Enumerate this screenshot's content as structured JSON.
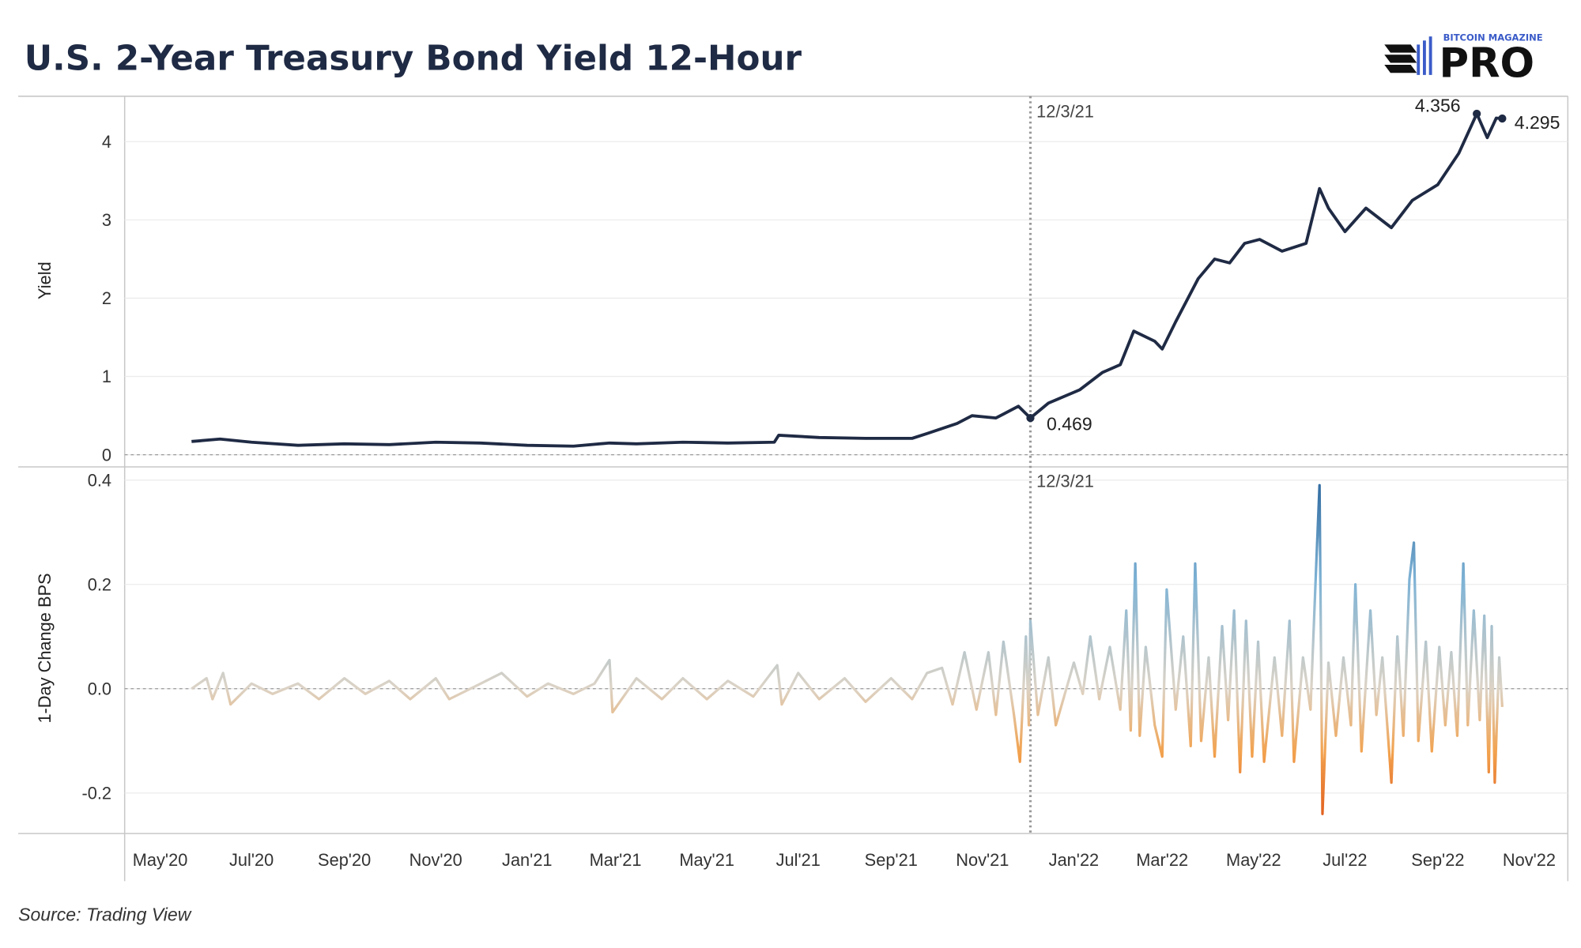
{
  "title": "U.S. 2-Year Treasury Bond Yield 12-Hour",
  "logo": {
    "top_text": "BITCOIN MAGAZINE",
    "main_text": "PRO"
  },
  "source": "Source: Trading View",
  "colors": {
    "yield_line": "#1f2a44",
    "change_positive": "#2f6aa0",
    "change_neutral": "#dcd3c6",
    "change_negative": "#e8661f"
  },
  "chart_data": [
    {
      "type": "line",
      "ylabel": "Yield",
      "ylim": [
        0,
        4.6
      ],
      "yticks": [
        "0",
        "1",
        "2",
        "3",
        "4"
      ],
      "grid": true,
      "marker_line": {
        "date": "2021-12-03",
        "label": "12/3/21"
      },
      "annotations": [
        {
          "date": "2021-12-03",
          "value": 0.469,
          "label": "0.469"
        },
        {
          "date": "2022-09-27",
          "value": 4.356,
          "label": "4.356"
        },
        {
          "date": "2022-10-14",
          "value": 4.295,
          "label": "4.295"
        }
      ],
      "series": {
        "x": [
          "2020-05-22",
          "2020-06-10",
          "2020-07-01",
          "2020-08-01",
          "2020-09-01",
          "2020-10-01",
          "2020-11-01",
          "2020-12-01",
          "2021-01-01",
          "2021-02-01",
          "2021-02-25",
          "2021-03-15",
          "2021-04-15",
          "2021-05-15",
          "2021-06-15",
          "2021-06-18",
          "2021-07-15",
          "2021-08-15",
          "2021-09-15",
          "2021-09-25",
          "2021-10-15",
          "2021-10-25",
          "2021-11-10",
          "2021-11-25",
          "2021-12-03",
          "2021-12-15",
          "2022-01-05",
          "2022-01-20",
          "2022-02-01",
          "2022-02-10",
          "2022-02-24",
          "2022-03-01",
          "2022-03-10",
          "2022-03-25",
          "2022-04-05",
          "2022-04-15",
          "2022-04-25",
          "2022-05-05",
          "2022-05-20",
          "2022-06-05",
          "2022-06-14",
          "2022-06-20",
          "2022-07-01",
          "2022-07-15",
          "2022-08-01",
          "2022-08-15",
          "2022-09-01",
          "2022-09-15",
          "2022-09-27",
          "2022-10-04",
          "2022-10-10",
          "2022-10-14"
        ],
        "values": [
          0.17,
          0.2,
          0.16,
          0.12,
          0.14,
          0.13,
          0.16,
          0.15,
          0.12,
          0.11,
          0.15,
          0.14,
          0.16,
          0.15,
          0.16,
          0.25,
          0.22,
          0.21,
          0.21,
          0.27,
          0.4,
          0.5,
          0.47,
          0.62,
          0.469,
          0.66,
          0.83,
          1.05,
          1.15,
          1.58,
          1.45,
          1.35,
          1.7,
          2.25,
          2.5,
          2.45,
          2.7,
          2.75,
          2.6,
          2.7,
          3.4,
          3.15,
          2.85,
          3.15,
          2.9,
          3.25,
          3.45,
          3.85,
          4.356,
          4.05,
          4.3,
          4.295
        ]
      }
    },
    {
      "type": "line",
      "ylabel": "1-Day Change BPS",
      "ylim": [
        -0.25,
        0.42
      ],
      "yticks": [
        "-0.2",
        "0.0",
        "0.2",
        "0.4"
      ],
      "grid": true,
      "marker_line": {
        "date": "2021-12-03",
        "label": "12/3/21"
      },
      "series": {
        "x": [
          "2020-05-22",
          "2020-06-01",
          "2020-06-05",
          "2020-06-12",
          "2020-06-17",
          "2020-07-01",
          "2020-07-15",
          "2020-08-01",
          "2020-08-15",
          "2020-09-01",
          "2020-09-15",
          "2020-10-01",
          "2020-10-15",
          "2020-11-01",
          "2020-11-10",
          "2020-12-01",
          "2020-12-15",
          "2021-01-01",
          "2021-01-15",
          "2021-02-01",
          "2021-02-15",
          "2021-02-25",
          "2021-02-27",
          "2021-03-15",
          "2021-04-01",
          "2021-04-15",
          "2021-05-01",
          "2021-05-15",
          "2021-06-01",
          "2021-06-17",
          "2021-06-20",
          "2021-07-01",
          "2021-07-15",
          "2021-08-01",
          "2021-08-15",
          "2021-09-01",
          "2021-09-15",
          "2021-09-25",
          "2021-10-05",
          "2021-10-12",
          "2021-10-20",
          "2021-10-28",
          "2021-11-05",
          "2021-11-10",
          "2021-11-15",
          "2021-11-22",
          "2021-11-26",
          "2021-11-30",
          "2021-12-02",
          "2021-12-03",
          "2021-12-08",
          "2021-12-15",
          "2021-12-20",
          "2022-01-01",
          "2022-01-07",
          "2022-01-12",
          "2022-01-18",
          "2022-01-25",
          "2022-02-01",
          "2022-02-05",
          "2022-02-08",
          "2022-02-11",
          "2022-02-14",
          "2022-02-18",
          "2022-02-24",
          "2022-03-01",
          "2022-03-04",
          "2022-03-10",
          "2022-03-15",
          "2022-03-20",
          "2022-03-23",
          "2022-03-27",
          "2022-04-01",
          "2022-04-05",
          "2022-04-10",
          "2022-04-14",
          "2022-04-18",
          "2022-04-22",
          "2022-04-26",
          "2022-04-30",
          "2022-05-04",
          "2022-05-08",
          "2022-05-15",
          "2022-05-20",
          "2022-05-25",
          "2022-05-28",
          "2022-06-03",
          "2022-06-08",
          "2022-06-12",
          "2022-06-14",
          "2022-06-16",
          "2022-06-20",
          "2022-06-25",
          "2022-06-30",
          "2022-07-05",
          "2022-07-08",
          "2022-07-12",
          "2022-07-18",
          "2022-07-22",
          "2022-07-26",
          "2022-08-01",
          "2022-08-05",
          "2022-08-09",
          "2022-08-13",
          "2022-08-16",
          "2022-08-19",
          "2022-08-24",
          "2022-08-28",
          "2022-09-02",
          "2022-09-06",
          "2022-09-10",
          "2022-09-14",
          "2022-09-18",
          "2022-09-21",
          "2022-09-25",
          "2022-09-29",
          "2022-10-02",
          "2022-10-05",
          "2022-10-07",
          "2022-10-09",
          "2022-10-12",
          "2022-10-14"
        ],
        "values": [
          0.0,
          0.02,
          -0.02,
          0.03,
          -0.03,
          0.01,
          -0.01,
          0.01,
          -0.02,
          0.02,
          -0.01,
          0.015,
          -0.02,
          0.02,
          -0.02,
          0.01,
          0.03,
          -0.015,
          0.01,
          -0.01,
          0.01,
          0.055,
          -0.045,
          0.02,
          -0.02,
          0.02,
          -0.02,
          0.015,
          -0.015,
          0.045,
          -0.03,
          0.03,
          -0.02,
          0.02,
          -0.025,
          0.02,
          -0.02,
          0.03,
          0.04,
          -0.03,
          0.07,
          -0.04,
          0.07,
          -0.05,
          0.09,
          -0.05,
          -0.14,
          0.1,
          -0.07,
          0.13,
          -0.05,
          0.06,
          -0.07,
          0.05,
          -0.01,
          0.1,
          -0.02,
          0.08,
          -0.04,
          0.15,
          -0.08,
          0.24,
          -0.09,
          0.08,
          -0.07,
          -0.13,
          0.19,
          -0.04,
          0.1,
          -0.11,
          0.24,
          -0.1,
          0.06,
          -0.13,
          0.12,
          -0.06,
          0.15,
          -0.16,
          0.13,
          -0.13,
          0.09,
          -0.14,
          0.06,
          -0.09,
          0.13,
          -0.14,
          0.06,
          -0.04,
          0.25,
          0.39,
          -0.24,
          0.05,
          -0.09,
          0.06,
          -0.07,
          0.2,
          -0.12,
          0.15,
          -0.05,
          0.06,
          -0.18,
          0.1,
          -0.09,
          0.21,
          0.28,
          -0.1,
          0.09,
          -0.12,
          0.08,
          -0.07,
          0.07,
          -0.09,
          0.24,
          -0.07,
          0.15,
          -0.06,
          0.14,
          -0.16,
          0.12,
          -0.18,
          0.06,
          -0.035
        ]
      }
    }
  ],
  "x_axis": {
    "tick_labels": [
      "May'20",
      "Jul'20",
      "Sep'20",
      "Nov'20",
      "Jan'21",
      "Mar'21",
      "May'21",
      "Jul'21",
      "Sep'21",
      "Nov'21",
      "Jan'22",
      "Mar'22",
      "May'22",
      "Jul'22",
      "Sep'22",
      "Nov'22"
    ],
    "tick_dates": [
      "2020-05-01",
      "2020-07-01",
      "2020-09-01",
      "2020-11-01",
      "2021-01-01",
      "2021-03-01",
      "2021-05-01",
      "2021-07-01",
      "2021-09-01",
      "2021-11-01",
      "2022-01-01",
      "2022-03-01",
      "2022-05-01",
      "2022-07-01",
      "2022-09-01",
      "2022-11-01"
    ]
  }
}
